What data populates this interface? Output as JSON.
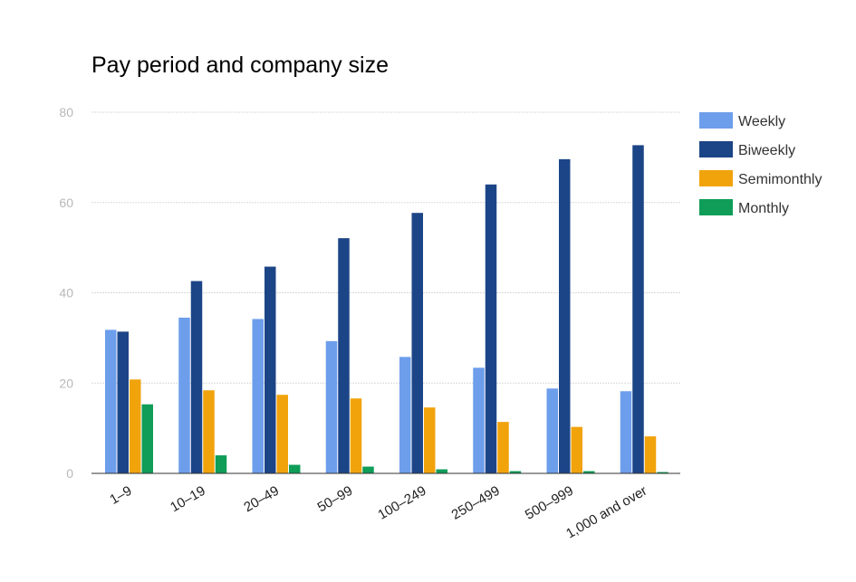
{
  "chart_data": {
    "type": "bar",
    "title": "Pay period and company size",
    "xlabel": "",
    "ylabel": "",
    "ylim": [
      0,
      80
    ],
    "yticks": [
      0,
      20,
      40,
      60,
      80
    ],
    "grid": true,
    "legend_position": "right",
    "categories": [
      "1–9",
      "10–19",
      "20–49",
      "50–99",
      "100–249",
      "250–499",
      "500–999",
      "1,000 and over"
    ],
    "series": [
      {
        "name": "Weekly",
        "color": "#6d9eeb",
        "values": [
          31.8,
          34.5,
          34.2,
          29.3,
          25.8,
          23.4,
          18.8,
          18.2
        ]
      },
      {
        "name": "Biweekly",
        "color": "#1c4587",
        "values": [
          31.4,
          42.6,
          45.8,
          52.1,
          57.7,
          64.0,
          69.6,
          72.7
        ]
      },
      {
        "name": "Semimonthly",
        "color": "#f1a30c",
        "values": [
          20.8,
          18.4,
          17.4,
          16.6,
          14.6,
          11.4,
          10.3,
          8.2
        ]
      },
      {
        "name": "Monthly",
        "color": "#0f9d58",
        "values": [
          15.3,
          4.0,
          1.9,
          1.5,
          0.9,
          0.5,
          0.5,
          0.3
        ]
      }
    ]
  }
}
